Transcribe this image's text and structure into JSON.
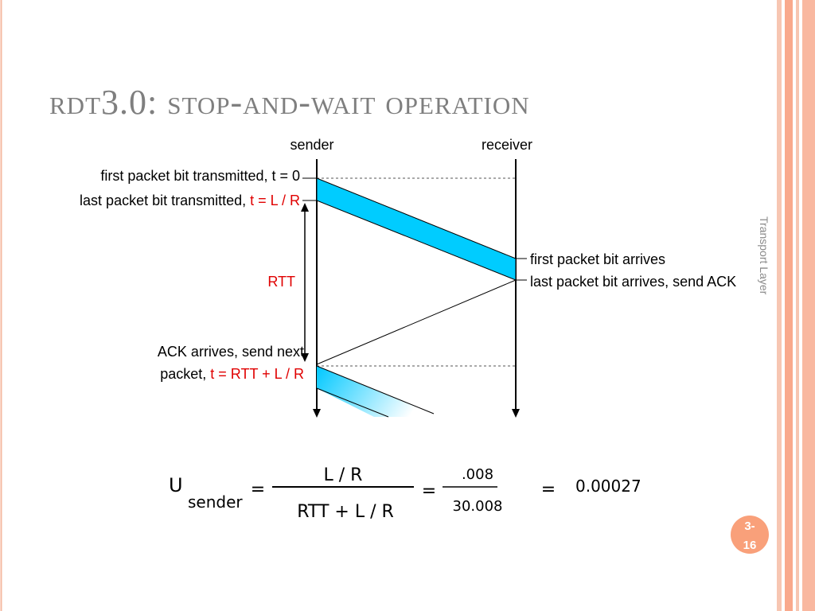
{
  "title": "rdt3.0: stop-and-wait operation",
  "diagram": {
    "sender": "sender",
    "receiver": "receiver",
    "first_bit_transmitted": "first packet bit transmitted, t = 0",
    "last_bit_transmitted": {
      "text": "last packet bit transmitted, ",
      "time": "t = L / R"
    },
    "rtt": "RTT",
    "first_bit_arrives": "first packet bit arrives",
    "last_bit_arrives": "last packet bit arrives, send ACK",
    "ack_arrives": {
      "line1": "ACK arrives, send next",
      "line2": "packet, ",
      "time": "t = RTT + L / R"
    }
  },
  "formula": {
    "symbol": "U",
    "subscript": "sender",
    "equals": [
      "=",
      "=",
      "="
    ],
    "numerator": "L / R",
    "denominator": "RTT + L / R",
    "value_numerator": ".008",
    "value_denominator": "30.008",
    "result": "0.00027"
  },
  "footer": {
    "section": "Transport Layer",
    "page": [
      "3-",
      "16"
    ]
  }
}
